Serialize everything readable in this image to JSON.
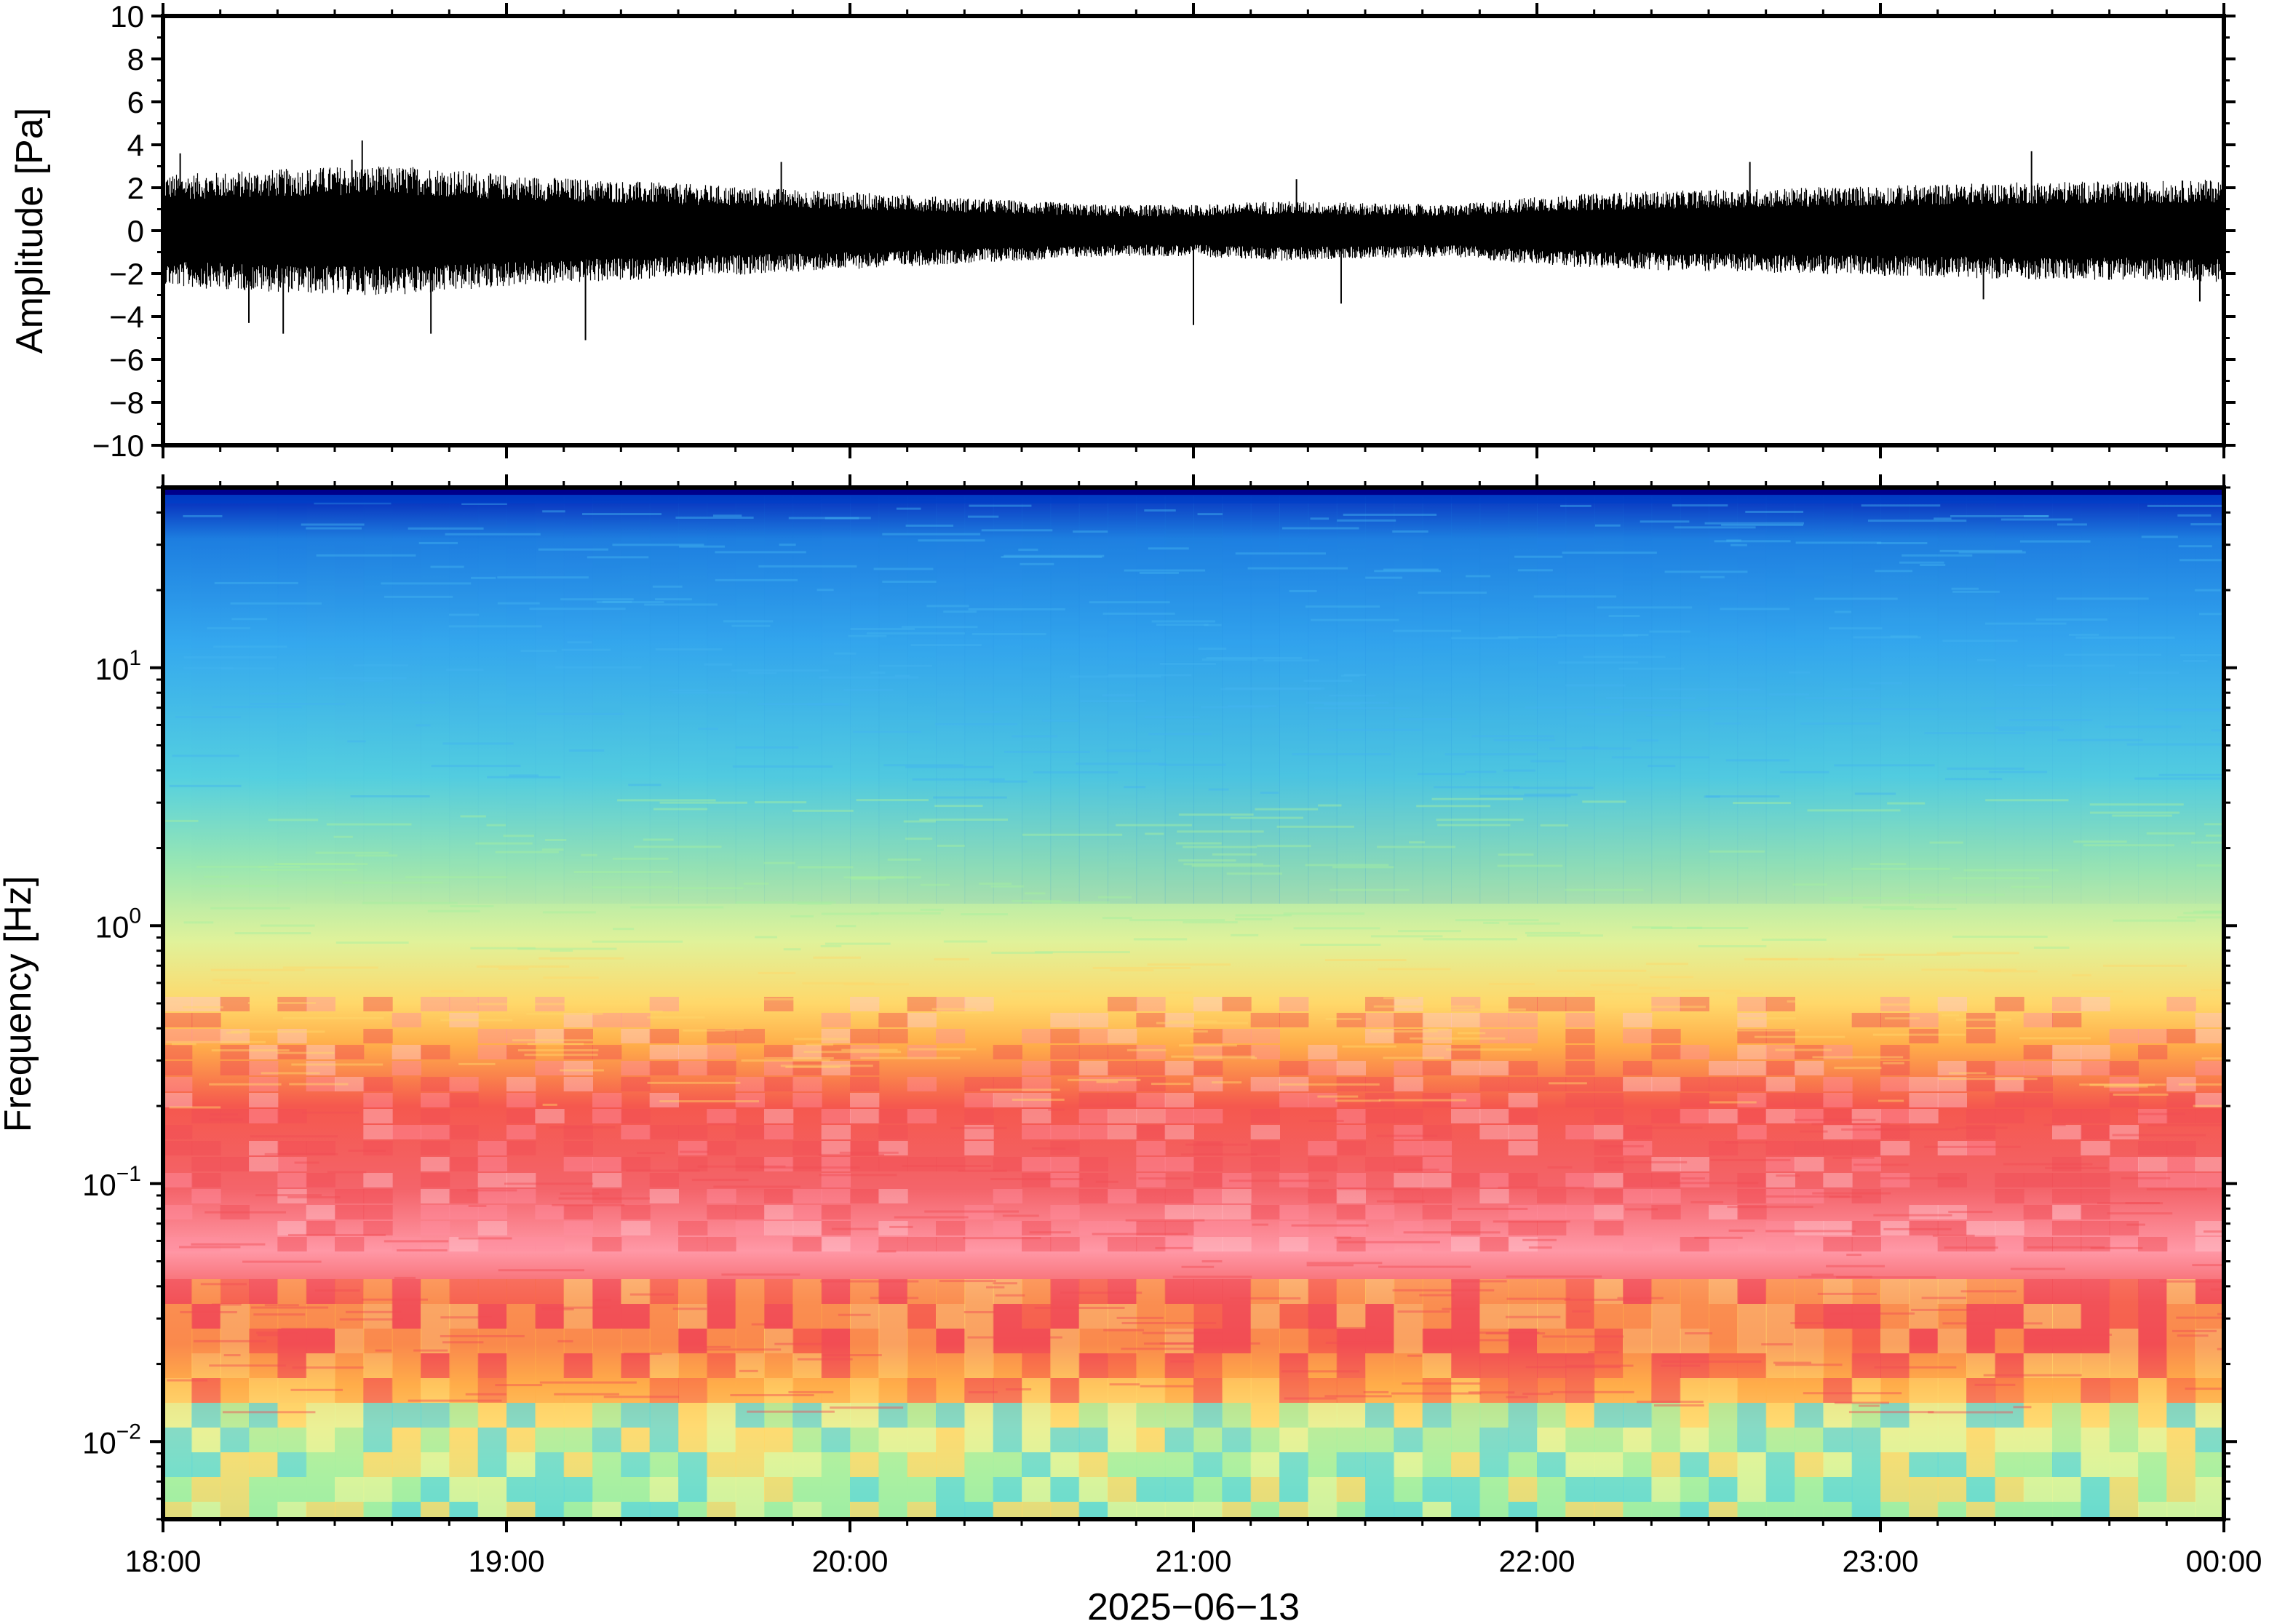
{
  "chart_data": [
    {
      "type": "line",
      "panel": "waveform",
      "ylabel": "Amplitude [Pa]",
      "ylim": [
        -10,
        10
      ],
      "yticks": [
        10,
        8,
        6,
        4,
        2,
        0,
        -2,
        -4,
        -6,
        -8,
        -10
      ],
      "ytick_labels": [
        "10",
        "8",
        "6",
        "4",
        "2",
        "0",
        "−2",
        "−4",
        "−6",
        "−8",
        "−10"
      ],
      "grid": false,
      "series": [
        {
          "color": "#000000",
          "x_hours": [
            0.0,
            0.25,
            0.5,
            0.75,
            1.0,
            1.25,
            1.5,
            1.75,
            2.0,
            2.25,
            2.5,
            2.75,
            3.0,
            3.25,
            3.5,
            3.75,
            4.0,
            4.25,
            4.5,
            4.75,
            5.0,
            5.25,
            5.5,
            5.75,
            6.0
          ],
          "envelope_max": [
            2.6,
            2.8,
            3.0,
            3.0,
            2.6,
            2.4,
            2.2,
            2.0,
            1.8,
            1.6,
            1.4,
            1.2,
            1.2,
            1.4,
            1.3,
            1.2,
            1.6,
            1.8,
            1.9,
            2.0,
            2.1,
            2.2,
            2.3,
            2.3,
            2.4
          ],
          "envelope_min": [
            -2.6,
            -2.8,
            -3.0,
            -3.0,
            -2.6,
            -2.4,
            -2.2,
            -2.0,
            -1.8,
            -1.6,
            -1.4,
            -1.2,
            -1.2,
            -1.4,
            -1.3,
            -1.2,
            -1.6,
            -1.8,
            -1.9,
            -2.0,
            -2.1,
            -2.2,
            -2.3,
            -2.3,
            -2.4
          ],
          "spikes": [
            {
              "x_hours": 0.05,
              "y": 3.6
            },
            {
              "x_hours": 0.25,
              "y": -4.3
            },
            {
              "x_hours": 0.35,
              "y": -4.8
            },
            {
              "x_hours": 0.55,
              "y": 3.3
            },
            {
              "x_hours": 0.58,
              "y": 4.2
            },
            {
              "x_hours": 0.78,
              "y": -4.8
            },
            {
              "x_hours": 1.23,
              "y": -5.1
            },
            {
              "x_hours": 1.8,
              "y": 3.2
            },
            {
              "x_hours": 3.0,
              "y": -4.4
            },
            {
              "x_hours": 3.3,
              "y": 2.4
            },
            {
              "x_hours": 3.43,
              "y": -3.4
            },
            {
              "x_hours": 4.62,
              "y": 3.2
            },
            {
              "x_hours": 5.3,
              "y": -3.2
            },
            {
              "x_hours": 5.44,
              "y": 3.7
            },
            {
              "x_hours": 5.93,
              "y": -3.3
            }
          ]
        }
      ]
    },
    {
      "type": "heatmap",
      "panel": "spectrogram",
      "ylabel": "Frequency [Hz]",
      "xlabel": "2025−06−13",
      "yscale": "log",
      "ylim": [
        0.005,
        50
      ],
      "yticks": [
        {
          "value": 10,
          "base": "10",
          "exp": "1"
        },
        {
          "value": 1,
          "base": "10",
          "exp": "0"
        },
        {
          "value": 0.1,
          "base": "10",
          "exp": "−1"
        },
        {
          "value": 0.01,
          "base": "10",
          "exp": "−2"
        }
      ],
      "x_range_hours": [
        0,
        6
      ],
      "xtick_labels": [
        "18:00",
        "19:00",
        "20:00",
        "21:00",
        "22:00",
        "23:00",
        "00:00"
      ],
      "colormap": [
        "#00008b",
        "#0040c8",
        "#1e88e5",
        "#42b4f0",
        "#5fd8d8",
        "#a6f0a0",
        "#e4f59a",
        "#ffd86a",
        "#ffb04a",
        "#f96a4a",
        "#f14d55",
        "#ff8fa0",
        "#ffc4cc"
      ],
      "intensity_by_hour": {
        "x_hours": [
          0,
          1,
          2,
          3,
          4,
          5,
          6
        ],
        "peak_band_hz": [
          0.12,
          0.1,
          0.09,
          0.08,
          0.1,
          0.12,
          0.12
        ],
        "high_freq_level": [
          0.55,
          0.5,
          0.45,
          0.35,
          0.4,
          0.48,
          0.5
        ]
      }
    }
  ]
}
